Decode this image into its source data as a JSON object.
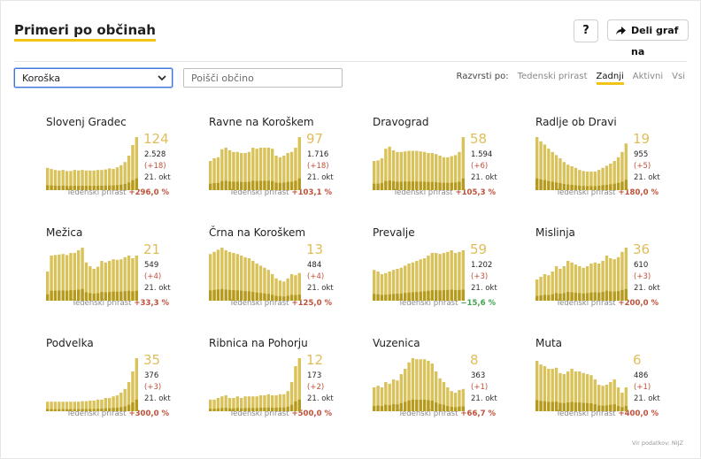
{
  "header": {
    "title": "Primeri po občinah",
    "help_label": "?",
    "share_label": "Deli graf na"
  },
  "filter": {
    "selected_region": "Koroška",
    "search_placeholder": "Poišči občino"
  },
  "sort": {
    "label": "Razvrsti po:",
    "options": [
      "Tedenski prirast",
      "Zadnji",
      "Aktivni",
      "Vsi"
    ],
    "active": "Zadnji"
  },
  "colors": {
    "accent": "#f0c419",
    "bar_light": "#d9c25a",
    "bar_dark": "#b59a1c",
    "number": "#e0bd5a",
    "increase": "#c0503a",
    "decrease": "#3fa34d"
  },
  "cards": [
    {
      "name": "Slovenj Gradec",
      "latest": "124",
      "total": "2.528",
      "delta": "(+18)",
      "date": "21. okt",
      "weekly_label": "Tedenski prirast",
      "weekly_pct": "+296,0 %",
      "weekly_negative": false,
      "series": [
        0.42,
        0.4,
        0.38,
        0.37,
        0.38,
        0.36,
        0.36,
        0.38,
        0.37,
        0.38,
        0.37,
        0.37,
        0.37,
        0.38,
        0.38,
        0.39,
        0.41,
        0.4,
        0.43,
        0.47,
        0.53,
        0.65,
        0.85,
        1.0
      ]
    },
    {
      "name": "Ravne na Koroškem",
      "latest": "97",
      "total": "1.716",
      "delta": "(+18)",
      "date": "21. okt",
      "weekly_label": "Tedenski prirast",
      "weekly_pct": "+103,1 %",
      "weekly_negative": false,
      "series": [
        0.55,
        0.6,
        0.62,
        0.77,
        0.8,
        0.75,
        0.72,
        0.72,
        0.7,
        0.7,
        0.72,
        0.8,
        0.78,
        0.8,
        0.8,
        0.8,
        0.78,
        0.65,
        0.62,
        0.65,
        0.7,
        0.72,
        0.8,
        1.0
      ]
    },
    {
      "name": "Dravograd",
      "latest": "58",
      "total": "1.594",
      "delta": "(+6)",
      "date": "21. okt",
      "weekly_label": "Tedenski prirast",
      "weekly_pct": "+105,3 %",
      "weekly_negative": false,
      "series": [
        0.55,
        0.56,
        0.6,
        0.78,
        0.82,
        0.75,
        0.72,
        0.72,
        0.73,
        0.74,
        0.74,
        0.74,
        0.73,
        0.72,
        0.7,
        0.7,
        0.68,
        0.65,
        0.62,
        0.62,
        0.64,
        0.66,
        0.72,
        1.0
      ]
    },
    {
      "name": "Radlje ob Dravi",
      "latest": "19",
      "total": "955",
      "delta": "(+5)",
      "date": "21. okt",
      "weekly_label": "Tedenski prirast",
      "weekly_pct": "+180,0 %",
      "weekly_negative": false,
      "series": [
        1.0,
        0.92,
        0.86,
        0.78,
        0.72,
        0.66,
        0.6,
        0.53,
        0.48,
        0.45,
        0.42,
        0.38,
        0.36,
        0.35,
        0.35,
        0.35,
        0.38,
        0.42,
        0.46,
        0.5,
        0.55,
        0.62,
        0.72,
        0.88
      ]
    },
    {
      "name": "Mežica",
      "latest": "21",
      "total": "549",
      "delta": "(+4)",
      "date": "21. okt",
      "weekly_label": "Tedenski prirast",
      "weekly_pct": "+33,3 %",
      "weekly_negative": false,
      "series": [
        0.55,
        0.85,
        0.86,
        0.87,
        0.88,
        0.86,
        0.9,
        0.9,
        0.95,
        1.0,
        0.72,
        0.65,
        0.6,
        0.64,
        0.75,
        0.72,
        0.75,
        0.78,
        0.77,
        0.78,
        0.82,
        0.85,
        0.8,
        0.85
      ]
    },
    {
      "name": "Črna na Koroškem",
      "latest": "13",
      "total": "484",
      "delta": "(+4)",
      "date": "21. okt",
      "weekly_label": "Tedenski prirast",
      "weekly_pct": "+125,0 %",
      "weekly_negative": false,
      "series": [
        0.88,
        0.92,
        0.96,
        1.0,
        0.95,
        0.92,
        0.9,
        0.88,
        0.85,
        0.82,
        0.8,
        0.75,
        0.7,
        0.66,
        0.62,
        0.58,
        0.5,
        0.42,
        0.38,
        0.36,
        0.42,
        0.5,
        0.48,
        0.52
      ]
    },
    {
      "name": "Prevalje",
      "latest": "59",
      "total": "1.202",
      "delta": "(+3)",
      "date": "21. okt",
      "weekly_label": "Tedenski prirast",
      "weekly_pct": "−15,6 %",
      "weekly_negative": true,
      "series": [
        0.58,
        0.55,
        0.5,
        0.52,
        0.55,
        0.58,
        0.6,
        0.62,
        0.66,
        0.7,
        0.72,
        0.75,
        0.78,
        0.8,
        0.85,
        0.9,
        0.9,
        0.88,
        0.9,
        0.92,
        0.95,
        0.9,
        0.92,
        0.95
      ]
    },
    {
      "name": "Mislinja",
      "latest": "36",
      "total": "610",
      "delta": "(+3)",
      "date": "21. okt",
      "weekly_label": "Tedenski prirast",
      "weekly_pct": "+200,0 %",
      "weekly_negative": false,
      "series": [
        0.4,
        0.45,
        0.5,
        0.48,
        0.55,
        0.65,
        0.6,
        0.65,
        0.75,
        0.72,
        0.68,
        0.65,
        0.62,
        0.65,
        0.7,
        0.72,
        0.7,
        0.75,
        0.85,
        0.8,
        0.78,
        0.82,
        0.92,
        1.0
      ]
    },
    {
      "name": "Podvelka",
      "latest": "35",
      "total": "376",
      "delta": "(+3)",
      "date": "21. okt",
      "weekly_label": "Tedenski prirast",
      "weekly_pct": "+300,0 %",
      "weekly_negative": false,
      "series": [
        0.18,
        0.18,
        0.18,
        0.18,
        0.18,
        0.18,
        0.18,
        0.18,
        0.18,
        0.19,
        0.19,
        0.2,
        0.2,
        0.22,
        0.22,
        0.25,
        0.25,
        0.28,
        0.3,
        0.35,
        0.42,
        0.55,
        0.75,
        1.0
      ]
    },
    {
      "name": "Ribnica na Pohorju",
      "latest": "12",
      "total": "173",
      "delta": "(+2)",
      "date": "21. okt",
      "weekly_label": "Tedenski prirast",
      "weekly_pct": "+500,0 %",
      "weekly_negative": false,
      "series": [
        0.22,
        0.22,
        0.25,
        0.28,
        0.3,
        0.25,
        0.25,
        0.28,
        0.25,
        0.28,
        0.28,
        0.28,
        0.28,
        0.3,
        0.3,
        0.32,
        0.3,
        0.3,
        0.32,
        0.32,
        0.38,
        0.55,
        0.85,
        1.0
      ]
    },
    {
      "name": "Vuzenica",
      "latest": "8",
      "total": "363",
      "delta": "(+1)",
      "date": "21. okt",
      "weekly_label": "Tedenski prirast",
      "weekly_pct": "+66,7 %",
      "weekly_negative": false,
      "series": [
        0.45,
        0.48,
        0.45,
        0.55,
        0.52,
        0.6,
        0.58,
        0.7,
        0.8,
        0.92,
        1.0,
        0.98,
        0.98,
        0.98,
        0.95,
        0.9,
        0.75,
        0.62,
        0.55,
        0.45,
        0.38,
        0.35,
        0.4,
        0.42
      ]
    },
    {
      "name": "Muta",
      "latest": "6",
      "total": "486",
      "delta": "(+1)",
      "date": "21. okt",
      "weekly_label": "Tedenski prirast",
      "weekly_pct": "+400,0 %",
      "weekly_negative": false,
      "series": [
        0.95,
        0.88,
        0.85,
        0.8,
        0.8,
        0.82,
        0.72,
        0.7,
        0.75,
        0.8,
        0.75,
        0.75,
        0.72,
        0.7,
        0.68,
        0.6,
        0.5,
        0.48,
        0.5,
        0.55,
        0.6,
        0.45,
        0.35,
        0.45
      ]
    }
  ],
  "source": "Vir podatkov: NIJZ"
}
